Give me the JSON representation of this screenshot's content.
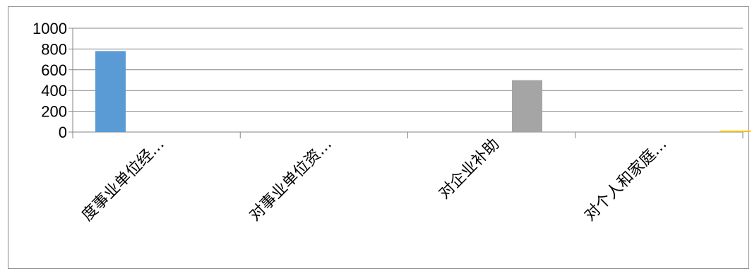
{
  "chart_data": {
    "type": "bar",
    "categories": [
      "度事业单位经…",
      "对事业单位资…",
      "对企业补助",
      "对个人和家庭…"
    ],
    "series": [
      {
        "values": [
          780,
          0,
          0,
          0
        ],
        "color": "#5B9BD5"
      },
      {
        "values": [
          0,
          0,
          0,
          0
        ],
        "color": "#ED7D31"
      },
      {
        "values": [
          0,
          0,
          500,
          0
        ],
        "color": "#A5A5A5"
      },
      {
        "values": [
          0,
          0,
          0,
          14
        ],
        "color": "#FFC000"
      }
    ],
    "yticks": [
      0,
      200,
      400,
      600,
      800,
      1000
    ],
    "ylim": [
      0,
      1000
    ],
    "grid": true,
    "legend": "none",
    "title": "",
    "xlabel": "",
    "ylabel": ""
  }
}
